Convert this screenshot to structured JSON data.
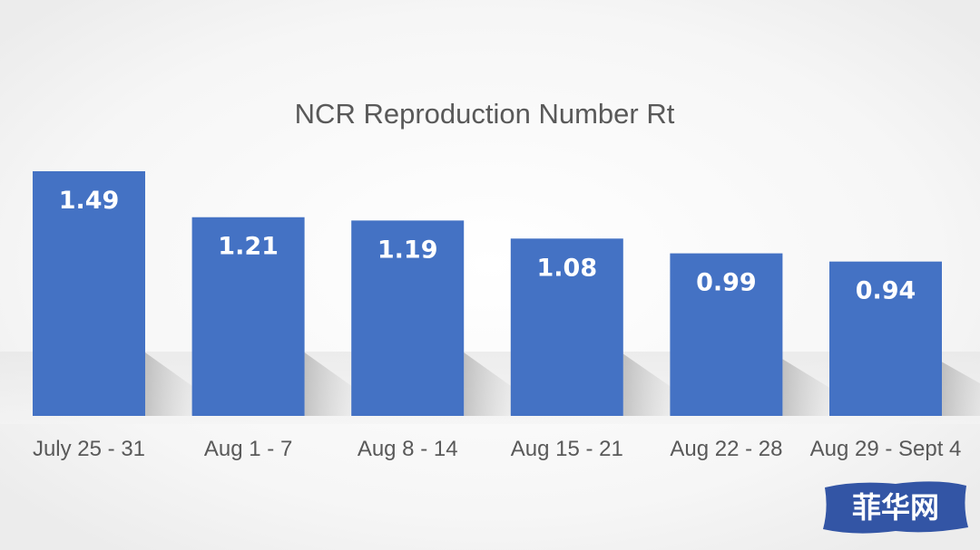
{
  "chart_data": {
    "type": "bar",
    "title": "NCR Reproduction Number Rt",
    "xlabel": "",
    "ylabel": "",
    "categories": [
      "July 25 - 31",
      "Aug 1 - 7",
      "Aug 8 - 14",
      "Aug 15 - 21",
      "Aug 22 - 28",
      "Aug 29 - Sept 4"
    ],
    "values": [
      1.49,
      1.21,
      1.19,
      1.08,
      0.99,
      0.94
    ],
    "value_labels": [
      "1.49",
      "1.21",
      "1.19",
      "1.08",
      "0.99",
      "0.94"
    ],
    "ylim": [
      0,
      1.5
    ],
    "grid": false,
    "legend": "none",
    "bar_color": "#4472C4"
  },
  "watermark": {
    "text": "菲华网",
    "color": "#3355A5"
  }
}
